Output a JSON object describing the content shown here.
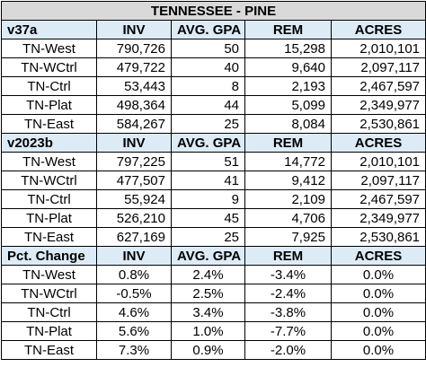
{
  "title": "TENNESSEE - PINE",
  "sections": [
    {
      "header": [
        "v37a",
        "INV",
        "AVG. GPA",
        "REM",
        "ACRES"
      ],
      "rows": [
        [
          "TN-West",
          "790,726",
          "50",
          "15,298",
          "2,010,101"
        ],
        [
          "TN-WCtrl",
          "479,722",
          "40",
          "9,640",
          "2,097,117"
        ],
        [
          "TN-Ctrl",
          "53,443",
          "8",
          "2,193",
          "2,467,597"
        ],
        [
          "TN-Plat",
          "498,364",
          "44",
          "5,099",
          "2,349,977"
        ],
        [
          "TN-East",
          "584,267",
          "25",
          "8,084",
          "2,530,861"
        ]
      ]
    },
    {
      "header": [
        "v2023b",
        "INV",
        "AVG. GPA",
        "REM",
        "ACRES"
      ],
      "rows": [
        [
          "TN-West",
          "797,225",
          "51",
          "14,772",
          "2,010,101"
        ],
        [
          "TN-WCtrl",
          "477,507",
          "41",
          "9,412",
          "2,097,117"
        ],
        [
          "TN-Ctrl",
          "55,924",
          "9",
          "2,109",
          "2,467,597"
        ],
        [
          "TN-Plat",
          "526,210",
          "45",
          "4,706",
          "2,349,977"
        ],
        [
          "TN-East",
          "627,169",
          "25",
          "7,925",
          "2,530,861"
        ]
      ]
    },
    {
      "header": [
        "Pct. Change",
        "INV",
        "AVG. GPA",
        "REM",
        "ACRES"
      ],
      "rows": [
        [
          "TN-West",
          "0.8%",
          "2.4%",
          "-3.4%",
          "0.0%"
        ],
        [
          "TN-WCtrl",
          "-0.5%",
          "2.5%",
          "-2.4%",
          "0.0%"
        ],
        [
          "TN-Ctrl",
          "4.6%",
          "3.4%",
          "-3.8%",
          "0.0%"
        ],
        [
          "TN-Plat",
          "5.6%",
          "1.0%",
          "-7.7%",
          "0.0%"
        ],
        [
          "TN-East",
          "7.3%",
          "0.9%",
          "-2.0%",
          "0.0%"
        ]
      ]
    }
  ]
}
